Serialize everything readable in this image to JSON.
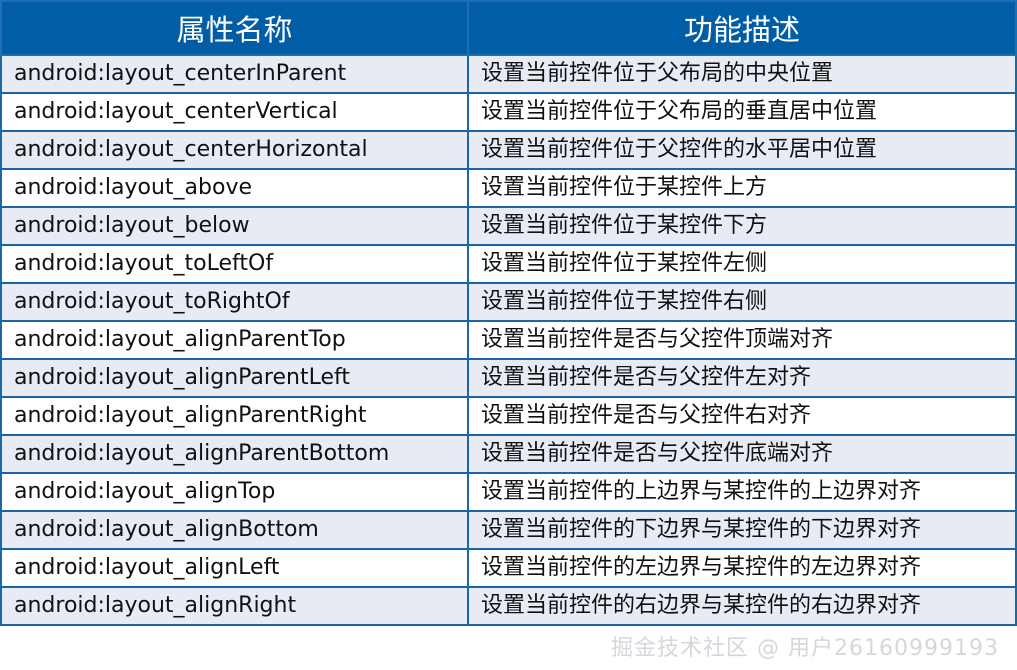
{
  "header": {
    "name": "属性名称",
    "desc": "功能描述"
  },
  "rows": [
    {
      "name": "android:layout_centerInParent",
      "desc": "设置当前控件位于父布局的中央位置"
    },
    {
      "name": "android:layout_centerVertical",
      "desc": "设置当前控件位于父布局的垂直居中位置"
    },
    {
      "name": "android:layout_centerHorizontal",
      "desc": "设置当前控件位于父控件的水平居中位置"
    },
    {
      "name": "android:layout_above",
      "desc": "设置当前控件位于某控件上方"
    },
    {
      "name": "android:layout_below",
      "desc": "设置当前控件位于某控件下方"
    },
    {
      "name": "android:layout_toLeftOf",
      "desc": "设置当前控件位于某控件左侧"
    },
    {
      "name": "android:layout_toRightOf",
      "desc": "设置当前控件位于某控件右侧"
    },
    {
      "name": "android:layout_alignParentTop",
      "desc": "设置当前控件是否与父控件顶端对齐"
    },
    {
      "name": "android:layout_alignParentLeft",
      "desc": "设置当前控件是否与父控件左对齐"
    },
    {
      "name": "android:layout_alignParentRight",
      "desc": "设置当前控件是否与父控件右对齐"
    },
    {
      "name": "android:layout_alignParentBottom",
      "desc": "设置当前控件是否与父控件底端对齐"
    },
    {
      "name": "android:layout_alignTop",
      "desc": "设置当前控件的上边界与某控件的上边界对齐"
    },
    {
      "name": "android:layout_alignBottom",
      "desc": "设置当前控件的下边界与某控件的下边界对齐"
    },
    {
      "name": "android:layout_alignLeft",
      "desc": "设置当前控件的左边界与某控件的左边界对齐"
    },
    {
      "name": "android:layout_alignRight",
      "desc": "设置当前控件的右边界与某控件的右边界对齐"
    }
  ],
  "watermark": "掘金技术社区 @ 用户26160999193",
  "colors": {
    "header_bg": "#005da6",
    "row_alt_bg": "#e9ebf4",
    "border": "#1a66a8"
  }
}
